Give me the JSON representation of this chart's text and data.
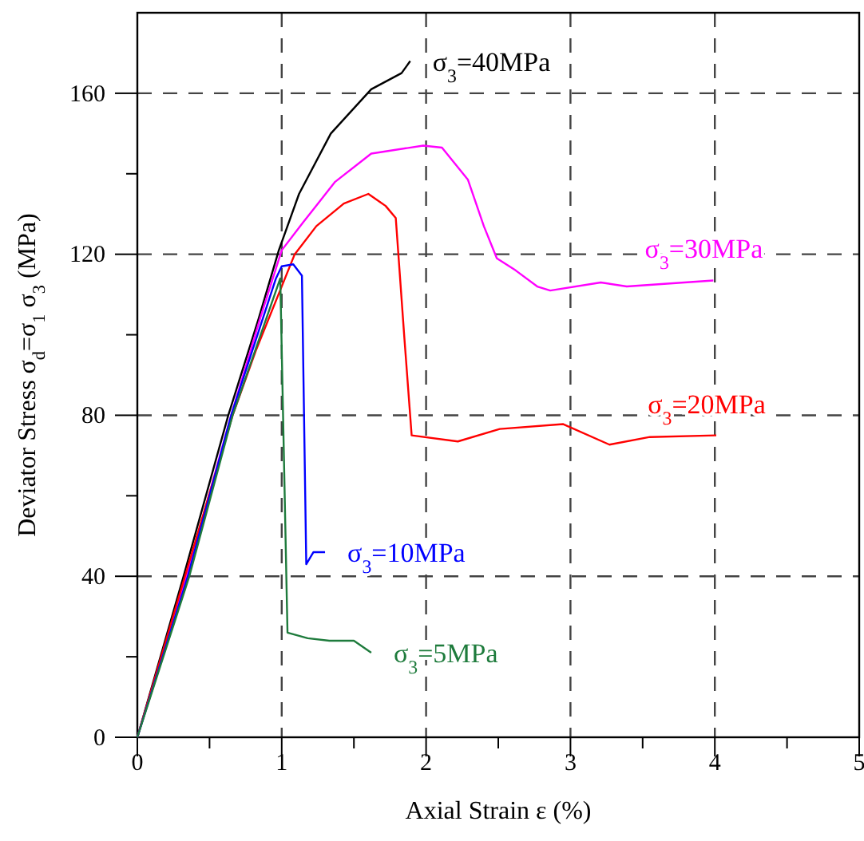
{
  "chart_data": {
    "type": "line",
    "xlabel": "Axial Strain ε (%)",
    "ylabel": "Deviator Stress σ$_{d}$=σ$_{1}$  σ$_{3}$ (MPa)",
    "xlim": [
      0,
      5
    ],
    "ylim": [
      0,
      180
    ],
    "xticks": [
      0,
      {
        "value": 0.5,
        "label": null
      },
      1,
      {
        "value": 1.5,
        "label": null
      },
      2,
      {
        "value": 2.5,
        "label": null
      },
      3,
      {
        "value": 3.5,
        "label": null
      },
      4,
      {
        "value": 4.5,
        "label": null
      },
      5
    ],
    "yticks": [
      0,
      {
        "value": 20,
        "label": null
      },
      40,
      {
        "value": 60,
        "label": null
      },
      80,
      {
        "value": 100,
        "label": null
      },
      120,
      {
        "value": 140,
        "label": null
      },
      160
    ],
    "grid": true,
    "line_style": "solid",
    "marker": "none",
    "legend": false,
    "series": [
      {
        "name": "σ$_{3}$=40MPa",
        "color": "#000000",
        "x": [
          0,
          0.32,
          0.63,
          0.84,
          0.98,
          1.12,
          1.34,
          1.62,
          1.83,
          1.89
        ],
        "values": [
          0,
          40,
          80,
          104,
          121,
          135,
          150,
          161,
          165,
          168
        ]
      },
      {
        "name": "σ$_{3}$=30MPa",
        "color": "#ff00ff",
        "x": [
          0,
          0.34,
          0.65,
          0.85,
          1.0,
          1.15,
          1.37,
          1.62,
          1.98,
          2.11,
          2.29,
          2.4,
          2.49,
          2.62,
          2.77,
          2.86,
          3.21,
          3.39,
          3.99
        ],
        "values": [
          0,
          40,
          80,
          104,
          121,
          128,
          138,
          145,
          147,
          146.5,
          138.5,
          127,
          119,
          116,
          112,
          111,
          113,
          112,
          113.5
        ]
      },
      {
        "name": "σ$_{3}$=20MPa",
        "color": "#ff0000",
        "x": [
          0,
          0.66,
          0.82,
          1.09,
          1.24,
          1.43,
          1.6,
          1.72,
          1.79,
          1.85,
          1.9,
          2.22,
          2.51,
          2.95,
          3.27,
          3.55,
          4.01
        ],
        "values": [
          0,
          80,
          96,
          120,
          127,
          132.6,
          135,
          132,
          129,
          99,
          75,
          73.5,
          76.6,
          77.8,
          72.7,
          74.6,
          75
        ]
      },
      {
        "name": "σ$_{3}$=10MPa",
        "color": "#0000ff",
        "x": [
          0,
          0.35,
          0.65,
          0.96,
          1.0,
          1.08,
          1.14,
          1.17,
          1.22,
          1.3
        ],
        "values": [
          0,
          40,
          80,
          114,
          117,
          117.5,
          114.7,
          43,
          46,
          46
        ]
      },
      {
        "name": "σ$_{3}$=5MPa",
        "color": "#1e7b3c",
        "x": [
          0,
          0.36,
          0.66,
          0.99,
          1.04,
          1.18,
          1.33,
          1.5,
          1.62
        ],
        "values": [
          0,
          40,
          80,
          114,
          26,
          24.6,
          24,
          24,
          21
        ]
      }
    ]
  }
}
